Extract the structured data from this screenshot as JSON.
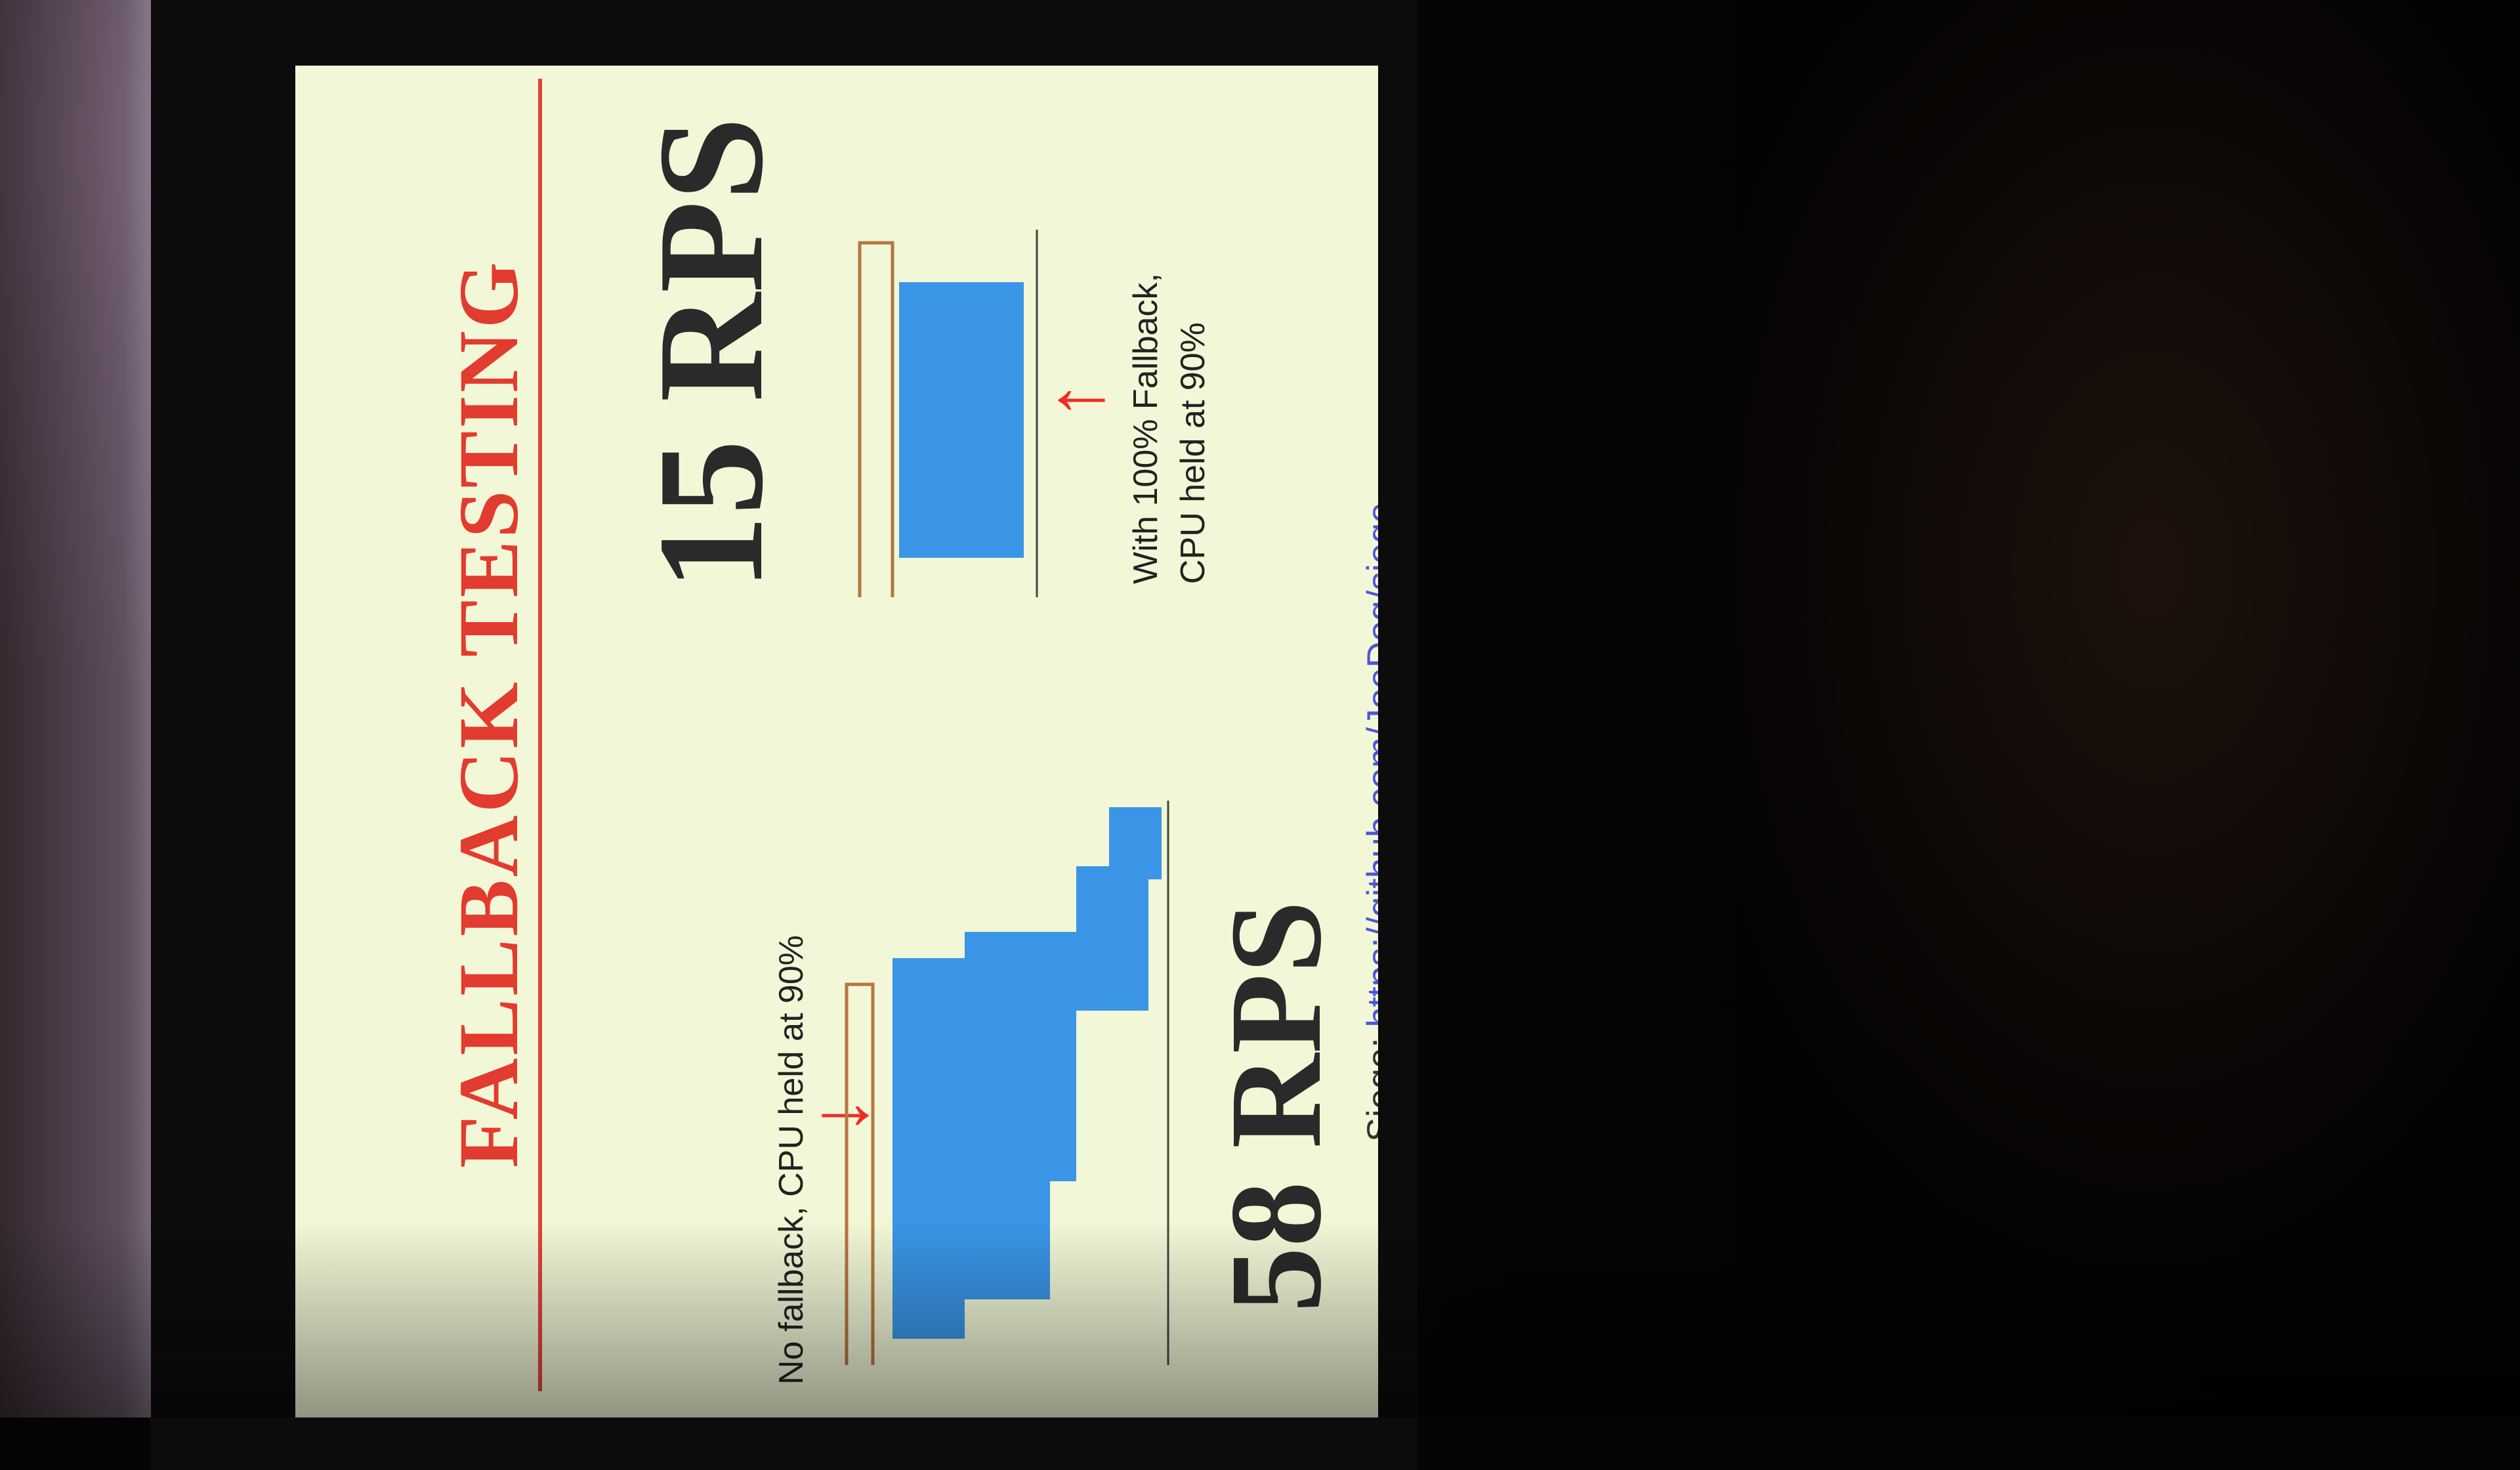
{
  "slide": {
    "title": "FALLBACK TESTING",
    "left": {
      "rps": "58 RPS",
      "caption": "No fallback, CPU held at 90%"
    },
    "right": {
      "rps": "15 RPS",
      "caption_line1": "With 100% Fallback,",
      "caption_line2": "CPU held at 90%"
    },
    "footer": {
      "prefix": "Siege: ",
      "link": "https://github.com/JoeDog/siege"
    },
    "colors": {
      "background": "#f2f7d7",
      "accent": "#e23b2f",
      "bars": "#3a95e6",
      "outline": "#b5773f"
    }
  }
}
